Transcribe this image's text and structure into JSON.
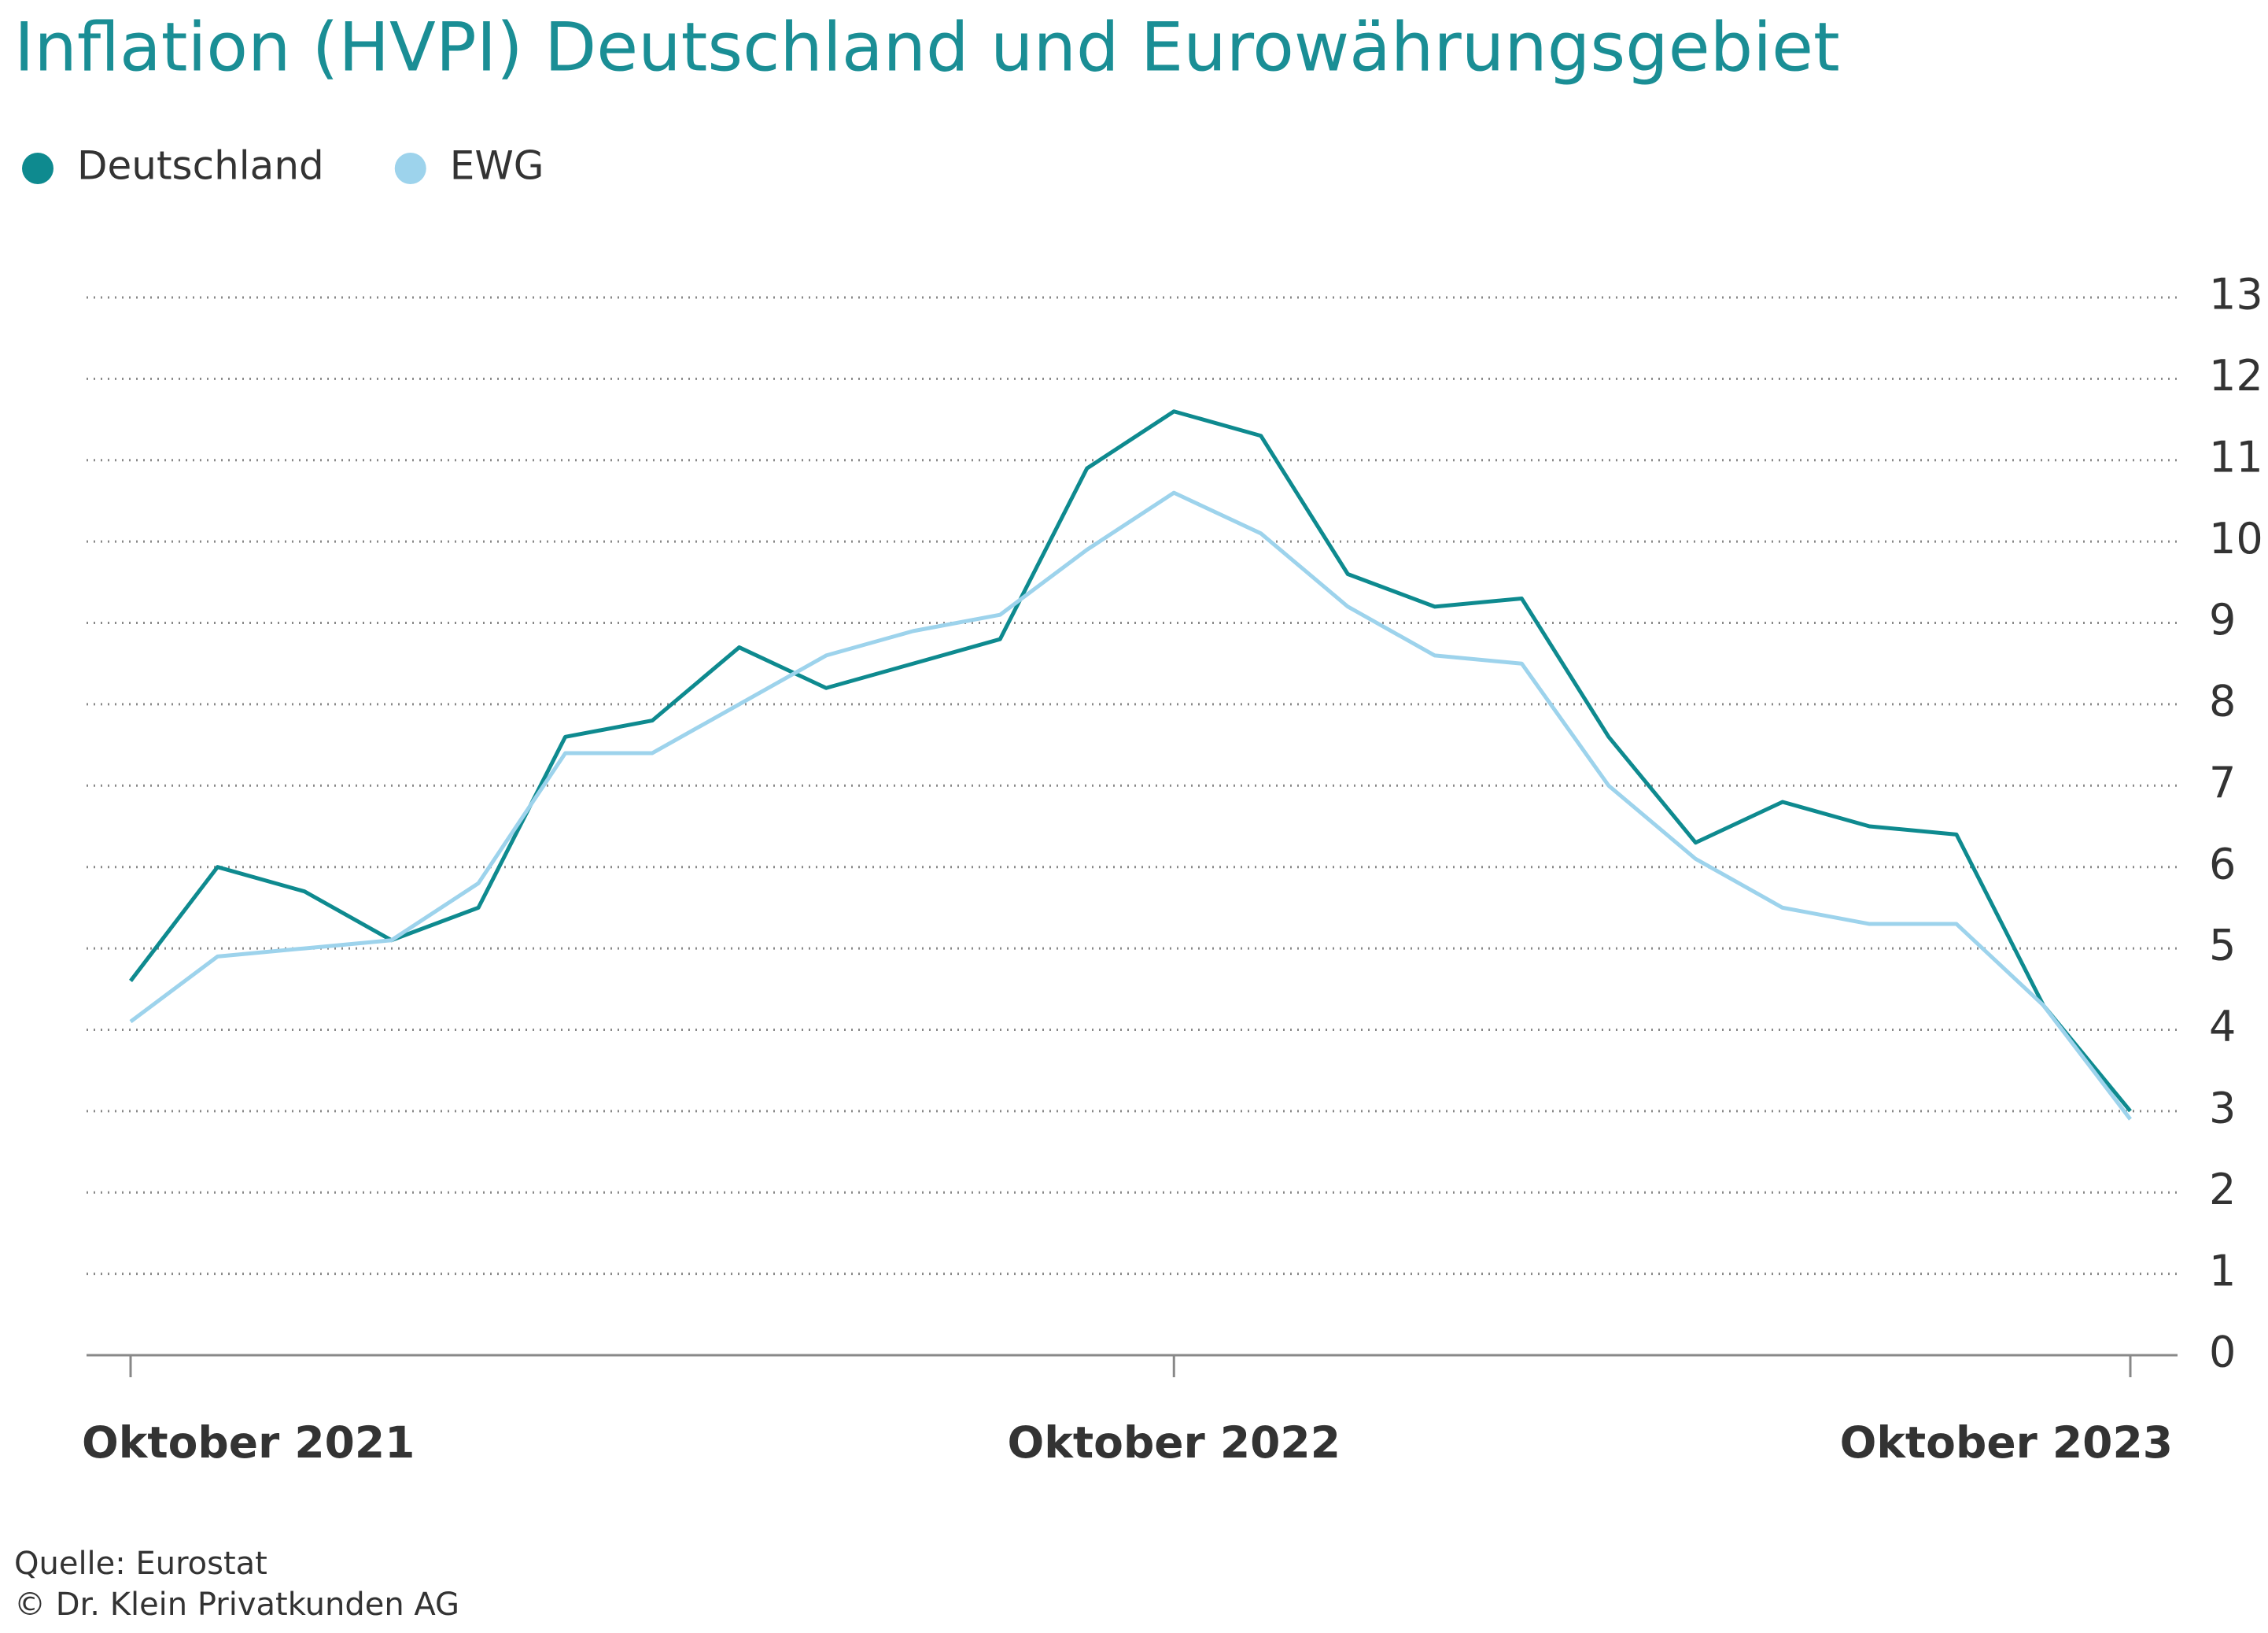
{
  "chart_data": {
    "type": "line",
    "title": "Inflation (HVPI) Deutschland und Eurowährungsgebiet",
    "categories": [
      "Oktober 2021",
      null,
      null,
      null,
      null,
      null,
      null,
      null,
      null,
      null,
      null,
      null,
      "Oktober 2022",
      null,
      null,
      null,
      null,
      null,
      null,
      null,
      null,
      null,
      null,
      "Oktober 2023"
    ],
    "series": [
      {
        "name": "Deutschland",
        "color": "#0e8a8f",
        "values": [
          4.6,
          6.0,
          5.7,
          5.1,
          5.5,
          7.6,
          7.8,
          8.7,
          8.2,
          8.5,
          8.8,
          10.9,
          11.6,
          11.3,
          9.6,
          9.2,
          9.3,
          7.6,
          6.3,
          6.8,
          6.5,
          6.4,
          4.3,
          3.0
        ]
      },
      {
        "name": "EWG",
        "color": "#9dd3ec",
        "values": [
          4.1,
          4.9,
          5.0,
          5.1,
          5.8,
          7.4,
          7.4,
          8.0,
          8.6,
          8.9,
          9.1,
          9.9,
          10.6,
          10.1,
          9.2,
          8.6,
          8.5,
          7.0,
          6.1,
          5.5,
          5.3,
          5.3,
          4.3,
          2.9
        ]
      }
    ],
    "ylim": [
      0,
      13
    ],
    "yticks": [
      0,
      1,
      2,
      3,
      4,
      5,
      6,
      7,
      8,
      9,
      10,
      11,
      12,
      13
    ],
    "grid": true,
    "source": "Quelle: Eurostat",
    "copyright": "© Dr. Klein Privatkunden AG"
  }
}
